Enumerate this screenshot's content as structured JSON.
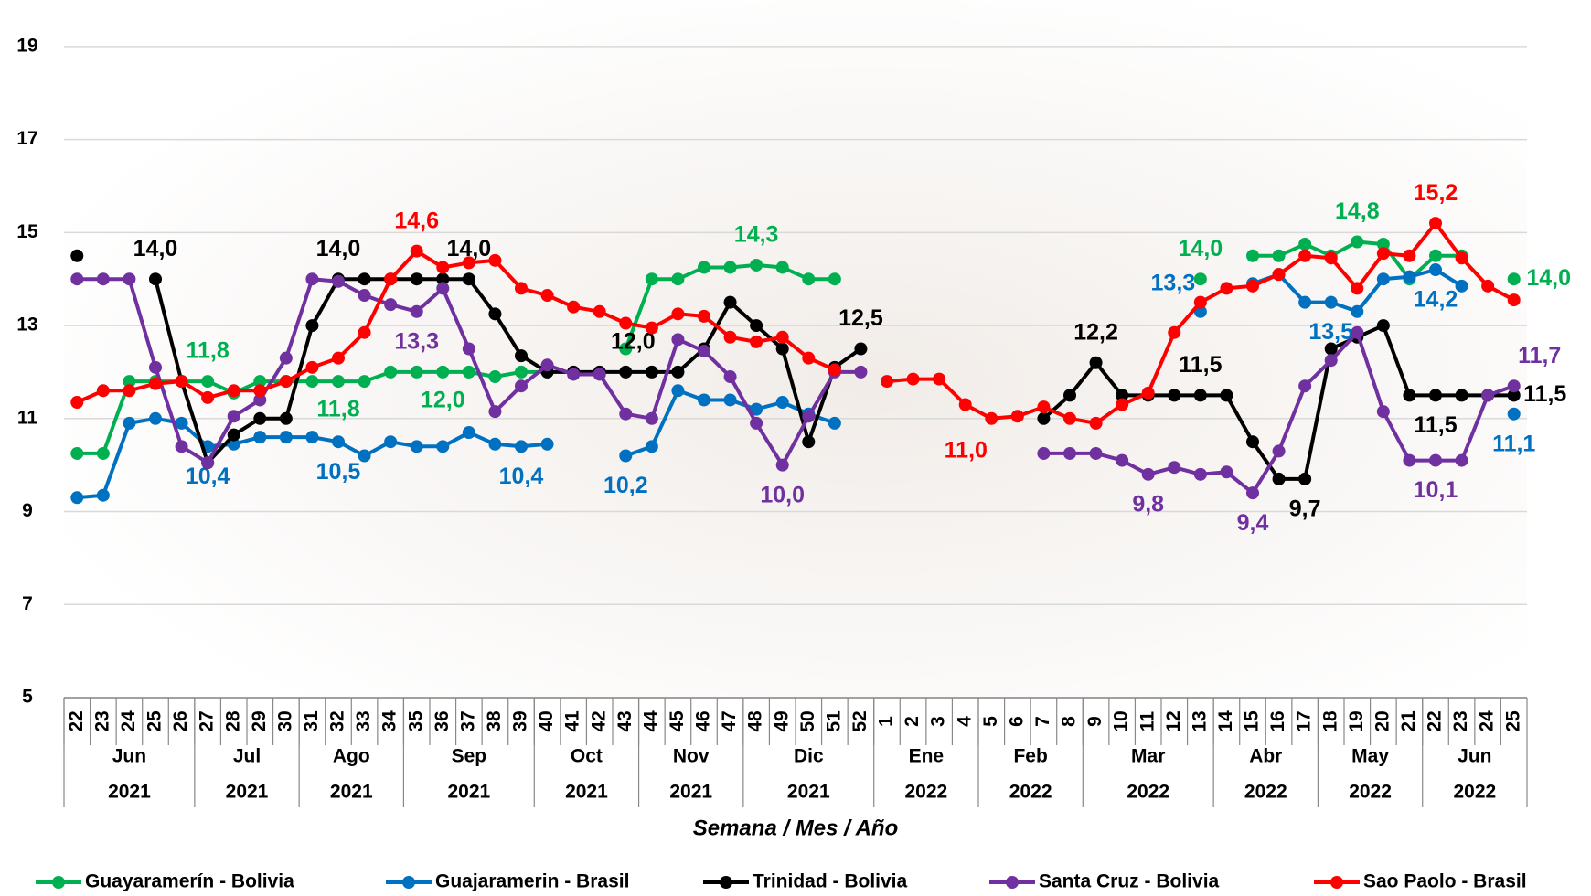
{
  "chart_data": {
    "type": "line",
    "x_axis_label": "Semana / Mes / Año",
    "categories": [
      "22",
      "23",
      "24",
      "25",
      "26",
      "27",
      "28",
      "29",
      "30",
      "31",
      "32",
      "33",
      "34",
      "35",
      "36",
      "37",
      "38",
      "39",
      "40",
      "41",
      "42",
      "43",
      "44",
      "45",
      "46",
      "47",
      "48",
      "49",
      "50",
      "51",
      "52",
      "1",
      "2",
      "3",
      "4",
      "5",
      "6",
      "7",
      "8",
      "9",
      "10",
      "11",
      "12",
      "13",
      "14",
      "15",
      "16",
      "17",
      "18",
      "19",
      "20",
      "21",
      "22",
      "23",
      "24",
      "25"
    ],
    "groups": [
      {
        "month": "Jun",
        "year": "2021",
        "count": 5
      },
      {
        "month": "Jul",
        "year": "2021",
        "count": 4
      },
      {
        "month": "Ago",
        "year": "2021",
        "count": 4
      },
      {
        "month": "Sep",
        "year": "2021",
        "count": 5
      },
      {
        "month": "Oct",
        "year": "2021",
        "count": 4
      },
      {
        "month": "Nov",
        "year": "2021",
        "count": 4
      },
      {
        "month": "Dic",
        "year": "2021",
        "count": 5
      },
      {
        "month": "Ene",
        "year": "2022",
        "count": 4
      },
      {
        "month": "Feb",
        "year": "2022",
        "count": 4
      },
      {
        "month": "Mar",
        "year": "2022",
        "count": 5
      },
      {
        "month": "Abr",
        "year": "2022",
        "count": 4
      },
      {
        "month": "May",
        "year": "2022",
        "count": 4
      },
      {
        "month": "Jun",
        "year": "2022",
        "count": 4
      }
    ],
    "ylim": [
      5,
      20
    ],
    "yticks": [
      5,
      7,
      9,
      11,
      13,
      15,
      17,
      19
    ],
    "grid": true,
    "legend": "bottom",
    "series": [
      {
        "name": "Guayaramerín - Bolivia",
        "color": "#00b050",
        "values": [
          10.25,
          10.25,
          11.8,
          11.8,
          11.8,
          11.8,
          11.55,
          11.8,
          11.8,
          11.8,
          11.8,
          11.8,
          12.0,
          12.0,
          12.0,
          12.0,
          11.9,
          12.0,
          12.0,
          null,
          null,
          12.5,
          14.0,
          14.0,
          14.25,
          14.25,
          14.3,
          14.25,
          14.0,
          14.0,
          null,
          null,
          null,
          null,
          null,
          null,
          null,
          null,
          null,
          null,
          null,
          null,
          null,
          14.0,
          null,
          14.5,
          14.5,
          14.75,
          14.5,
          14.8,
          14.75,
          14.0,
          14.5,
          14.5,
          null,
          14.0
        ],
        "value_labels": [
          null,
          null,
          null,
          null,
          null,
          "11,8",
          null,
          null,
          null,
          null,
          "11,8",
          null,
          null,
          null,
          "12,0",
          null,
          null,
          null,
          null,
          null,
          null,
          null,
          null,
          null,
          null,
          null,
          "14,3",
          null,
          null,
          null,
          null,
          null,
          null,
          null,
          null,
          null,
          null,
          null,
          null,
          null,
          null,
          null,
          null,
          "14,0",
          null,
          null,
          null,
          null,
          null,
          "14,8",
          null,
          null,
          null,
          null,
          null,
          "14,0"
        ]
      },
      {
        "name": "Guajaramerin - Brasil",
        "color": "#0070c0",
        "values": [
          9.3,
          9.35,
          10.9,
          11.0,
          10.9,
          10.4,
          10.45,
          10.6,
          10.6,
          10.6,
          10.5,
          10.2,
          10.5,
          10.4,
          10.4,
          10.7,
          10.45,
          10.4,
          10.45,
          null,
          null,
          10.2,
          10.4,
          11.6,
          11.4,
          11.4,
          11.2,
          11.35,
          11.1,
          10.9,
          null,
          null,
          null,
          null,
          null,
          null,
          null,
          null,
          null,
          null,
          null,
          null,
          null,
          13.3,
          null,
          13.9,
          14.1,
          13.5,
          13.5,
          13.3,
          14.0,
          14.05,
          14.2,
          13.85,
          null,
          11.1
        ],
        "value_labels": [
          null,
          null,
          null,
          null,
          null,
          "10,4",
          null,
          null,
          null,
          null,
          "10,5",
          null,
          null,
          null,
          null,
          null,
          null,
          "10,4",
          null,
          null,
          null,
          "10,2",
          null,
          null,
          null,
          null,
          null,
          null,
          null,
          null,
          null,
          null,
          null,
          null,
          null,
          null,
          null,
          null,
          null,
          null,
          null,
          null,
          null,
          "13,3",
          null,
          null,
          null,
          null,
          "13,5",
          null,
          null,
          null,
          "14,2",
          null,
          null,
          "11,1"
        ]
      },
      {
        "name": "Trinidad - Bolivia",
        "color": "#000000",
        "values": [
          14.5,
          null,
          null,
          14.0,
          11.8,
          10.05,
          10.65,
          11.0,
          11.0,
          13.0,
          14.0,
          14.0,
          14.0,
          14.0,
          14.0,
          14.0,
          13.25,
          12.35,
          12.0,
          12.0,
          12.0,
          12.0,
          12.0,
          12.0,
          12.5,
          13.5,
          13.0,
          12.5,
          10.5,
          12.1,
          12.5,
          null,
          null,
          null,
          null,
          null,
          null,
          11.0,
          11.5,
          12.2,
          11.5,
          11.5,
          11.5,
          11.5,
          11.5,
          10.5,
          9.7,
          9.7,
          12.5,
          12.75,
          13.0,
          11.5,
          11.5,
          11.5,
          11.5,
          11.5
        ],
        "value_labels": [
          null,
          null,
          null,
          "14,0",
          null,
          null,
          null,
          null,
          null,
          null,
          "14,0",
          null,
          null,
          null,
          null,
          "14,0",
          null,
          null,
          null,
          null,
          null,
          "12,0",
          null,
          null,
          null,
          null,
          null,
          null,
          null,
          null,
          "12,5",
          null,
          null,
          null,
          null,
          null,
          null,
          null,
          null,
          "12,2",
          null,
          null,
          null,
          "11,5",
          null,
          null,
          null,
          "9,7",
          null,
          null,
          null,
          null,
          "11,5",
          null,
          null,
          "11,5"
        ]
      },
      {
        "name": "Santa Cruz - Bolivia",
        "color": "#7030a0",
        "values": [
          14.0,
          14.0,
          14.0,
          12.1,
          10.4,
          10.05,
          11.05,
          11.4,
          12.3,
          14.0,
          13.95,
          13.65,
          13.45,
          13.3,
          13.8,
          12.5,
          11.15,
          11.7,
          12.15,
          11.95,
          11.95,
          11.1,
          11.0,
          12.7,
          12.45,
          11.9,
          10.9,
          10.0,
          11.05,
          12.0,
          12.0,
          null,
          null,
          null,
          null,
          null,
          null,
          10.25,
          10.25,
          10.25,
          10.1,
          9.8,
          9.95,
          9.8,
          9.85,
          9.4,
          10.3,
          11.7,
          12.25,
          12.85,
          11.15,
          10.1,
          10.1,
          10.1,
          11.5,
          11.7
        ],
        "value_labels": [
          null,
          null,
          null,
          null,
          null,
          null,
          null,
          null,
          null,
          null,
          null,
          null,
          null,
          "13,3",
          null,
          null,
          null,
          null,
          null,
          null,
          null,
          null,
          null,
          null,
          null,
          null,
          null,
          "10,0",
          null,
          null,
          null,
          null,
          null,
          null,
          null,
          null,
          null,
          null,
          null,
          null,
          null,
          "9,8",
          null,
          null,
          null,
          "9,4",
          null,
          null,
          null,
          null,
          null,
          null,
          "10,1",
          null,
          null,
          "11,7"
        ]
      },
      {
        "name": "Sao Paolo - Brasil",
        "color": "#ff0000",
        "values": [
          11.35,
          11.6,
          11.6,
          11.75,
          11.8,
          11.45,
          11.6,
          11.6,
          11.8,
          12.1,
          12.3,
          12.85,
          14.0,
          14.6,
          14.25,
          14.35,
          14.4,
          13.8,
          13.65,
          13.4,
          13.3,
          13.05,
          12.95,
          13.25,
          13.2,
          12.75,
          12.65,
          12.75,
          12.3,
          12.05,
          null,
          11.8,
          11.85,
          11.85,
          11.3,
          11.0,
          11.05,
          11.25,
          11.0,
          10.9,
          11.3,
          11.55,
          12.85,
          13.5,
          13.8,
          13.85,
          14.1,
          14.5,
          14.45,
          13.8,
          14.55,
          14.5,
          15.2,
          14.45,
          13.85,
          13.55
        ],
        "value_labels": [
          null,
          null,
          null,
          null,
          null,
          null,
          null,
          null,
          null,
          null,
          null,
          null,
          null,
          "14,6",
          null,
          null,
          null,
          null,
          null,
          null,
          null,
          null,
          null,
          null,
          null,
          null,
          null,
          null,
          null,
          null,
          null,
          null,
          null,
          null,
          null,
          "11,0",
          null,
          null,
          null,
          null,
          null,
          null,
          null,
          null,
          null,
          null,
          null,
          null,
          null,
          null,
          null,
          null,
          "15,2",
          null,
          null,
          null
        ]
      }
    ]
  }
}
